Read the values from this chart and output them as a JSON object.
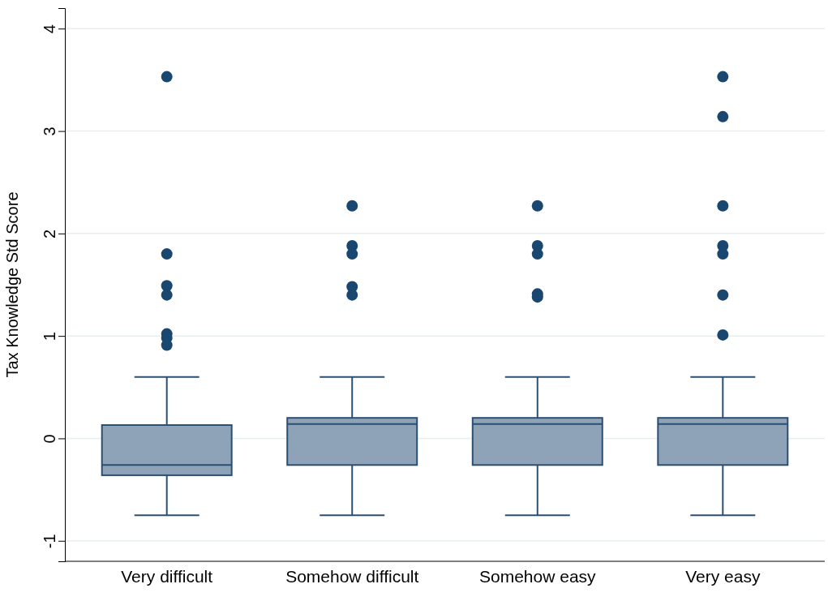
{
  "chart_data": {
    "type": "box",
    "ylabel": "Tax Knowledge Std Score",
    "categories": [
      "Very difficult",
      "Somehow difficult",
      "Somehow easy",
      "Very easy"
    ],
    "boxes": [
      {
        "low": -0.75,
        "q1": -0.36,
        "median": -0.26,
        "q3": 0.13,
        "high": 0.6,
        "outliers": [
          3.53,
          1.8,
          1.49,
          1.4,
          1.02,
          0.98,
          0.91
        ]
      },
      {
        "low": -0.75,
        "q1": -0.26,
        "median": 0.14,
        "q3": 0.2,
        "high": 0.6,
        "outliers": [
          2.27,
          1.88,
          1.8,
          1.48,
          1.4
        ]
      },
      {
        "low": -0.75,
        "q1": -0.26,
        "median": 0.14,
        "q3": 0.2,
        "high": 0.6,
        "outliers": [
          2.27,
          1.88,
          1.8,
          1.41,
          1.38
        ]
      },
      {
        "low": -0.75,
        "q1": -0.26,
        "median": 0.14,
        "q3": 0.2,
        "high": 0.6,
        "outliers": [
          3.53,
          3.14,
          2.27,
          1.88,
          1.8,
          1.4,
          1.01
        ]
      }
    ],
    "color": "#8fa3b8",
    "ylim": [
      -1.2,
      4.2
    ],
    "yticks": [
      -1,
      0,
      1,
      2,
      3,
      4
    ],
    "grid": "y"
  }
}
